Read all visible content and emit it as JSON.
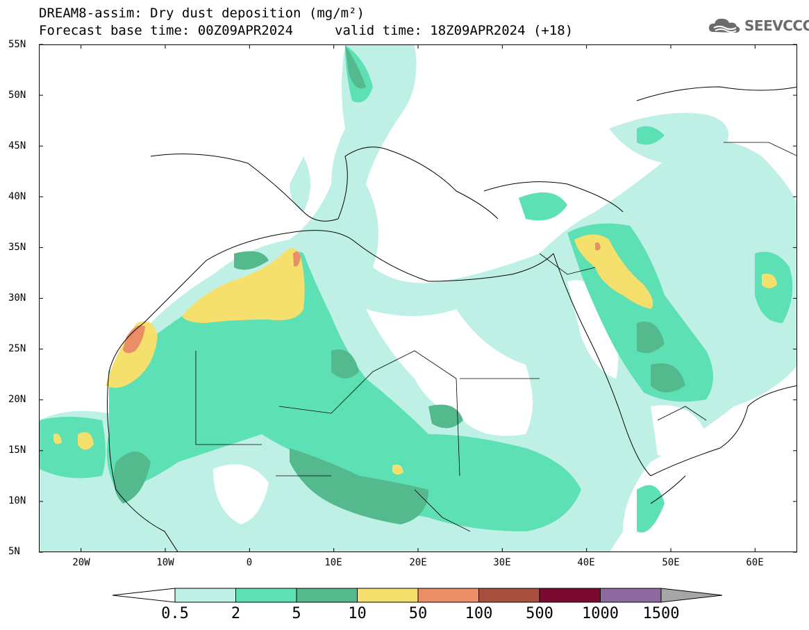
{
  "header": {
    "title": "DREAM8-assim: Dry dust deposition (mg/m²)",
    "base_time": "Forecast base time: 00Z09APR2024",
    "valid_time": "valid time: 18Z09APR2024 (+18)",
    "logo_text": "SEEVCCC",
    "logo_icon": "cloud-logo-icon"
  },
  "map": {
    "lon_range": [
      -25,
      65
    ],
    "lat_range": [
      5,
      55
    ],
    "lat_labels": [
      "55N",
      "50N",
      "45N",
      "40N",
      "35N",
      "30N",
      "25N",
      "20N",
      "15N",
      "10N",
      "5N"
    ],
    "lat_values": [
      55,
      50,
      45,
      40,
      35,
      30,
      25,
      20,
      15,
      10,
      5
    ],
    "lon_labels": [
      "20W",
      "10W",
      "0",
      "10E",
      "20E",
      "30E",
      "40E",
      "50E",
      "60E"
    ],
    "lon_values": [
      -20,
      -10,
      0,
      10,
      20,
      30,
      40,
      50,
      60
    ]
  },
  "colorbar": {
    "levels": [
      "0.5",
      "2",
      "5",
      "10",
      "50",
      "100",
      "500",
      "1000",
      "1500"
    ],
    "colors": [
      "#bff0e6",
      "#5ce0b4",
      "#55b98e",
      "#f5e06e",
      "#ea8e68",
      "#a8503f",
      "#7a0a30",
      "#8c6aa0"
    ],
    "under_color": "#ffffff",
    "over_color": "#a6a6a6"
  }
}
